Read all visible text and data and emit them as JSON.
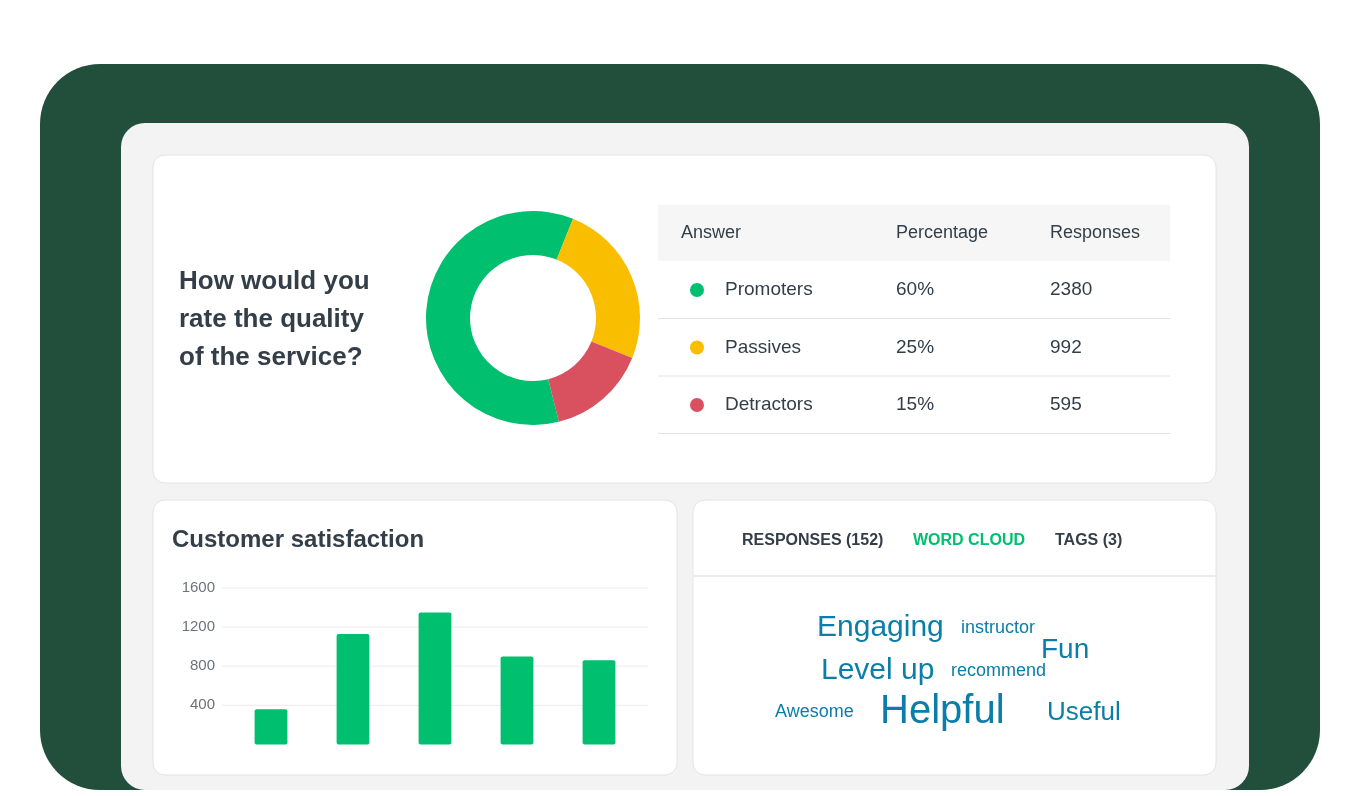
{
  "chart_data": [
    {
      "type": "donut",
      "title": "How would you rate the quality of the service?",
      "categories": [
        "Promoters",
        "Passives",
        "Detractors"
      ],
      "values": [
        60,
        25,
        15
      ],
      "colors": [
        "#00bf6f",
        "#f9be00",
        "#d9515e"
      ],
      "value_labels": [
        "60%",
        "25%",
        "15%"
      ],
      "annotations": [
        "Answer",
        "Percentage",
        "Responses",
        "2380",
        "992",
        "595"
      ],
      "legend": "right"
    },
    {
      "type": "bar",
      "title": "Customer satisfaction",
      "categories": [
        null,
        null,
        null,
        null,
        null
      ],
      "values": [
        360,
        1130,
        1350,
        900,
        860
      ],
      "color": "#00bf6f",
      "ylim": [
        0,
        1600
      ],
      "yticks": [
        400,
        800,
        1200,
        1600
      ],
      "grid": "y"
    },
    {
      "type": "other",
      "annotations": [
        "RESPONSES (152)",
        "WORD CLOUD",
        "TAGS (3)",
        "Engaging",
        "instructor",
        "Fun",
        "Level up",
        "recommend",
        "Awesome",
        "Helpful",
        "Useful"
      ]
    }
  ]
}
